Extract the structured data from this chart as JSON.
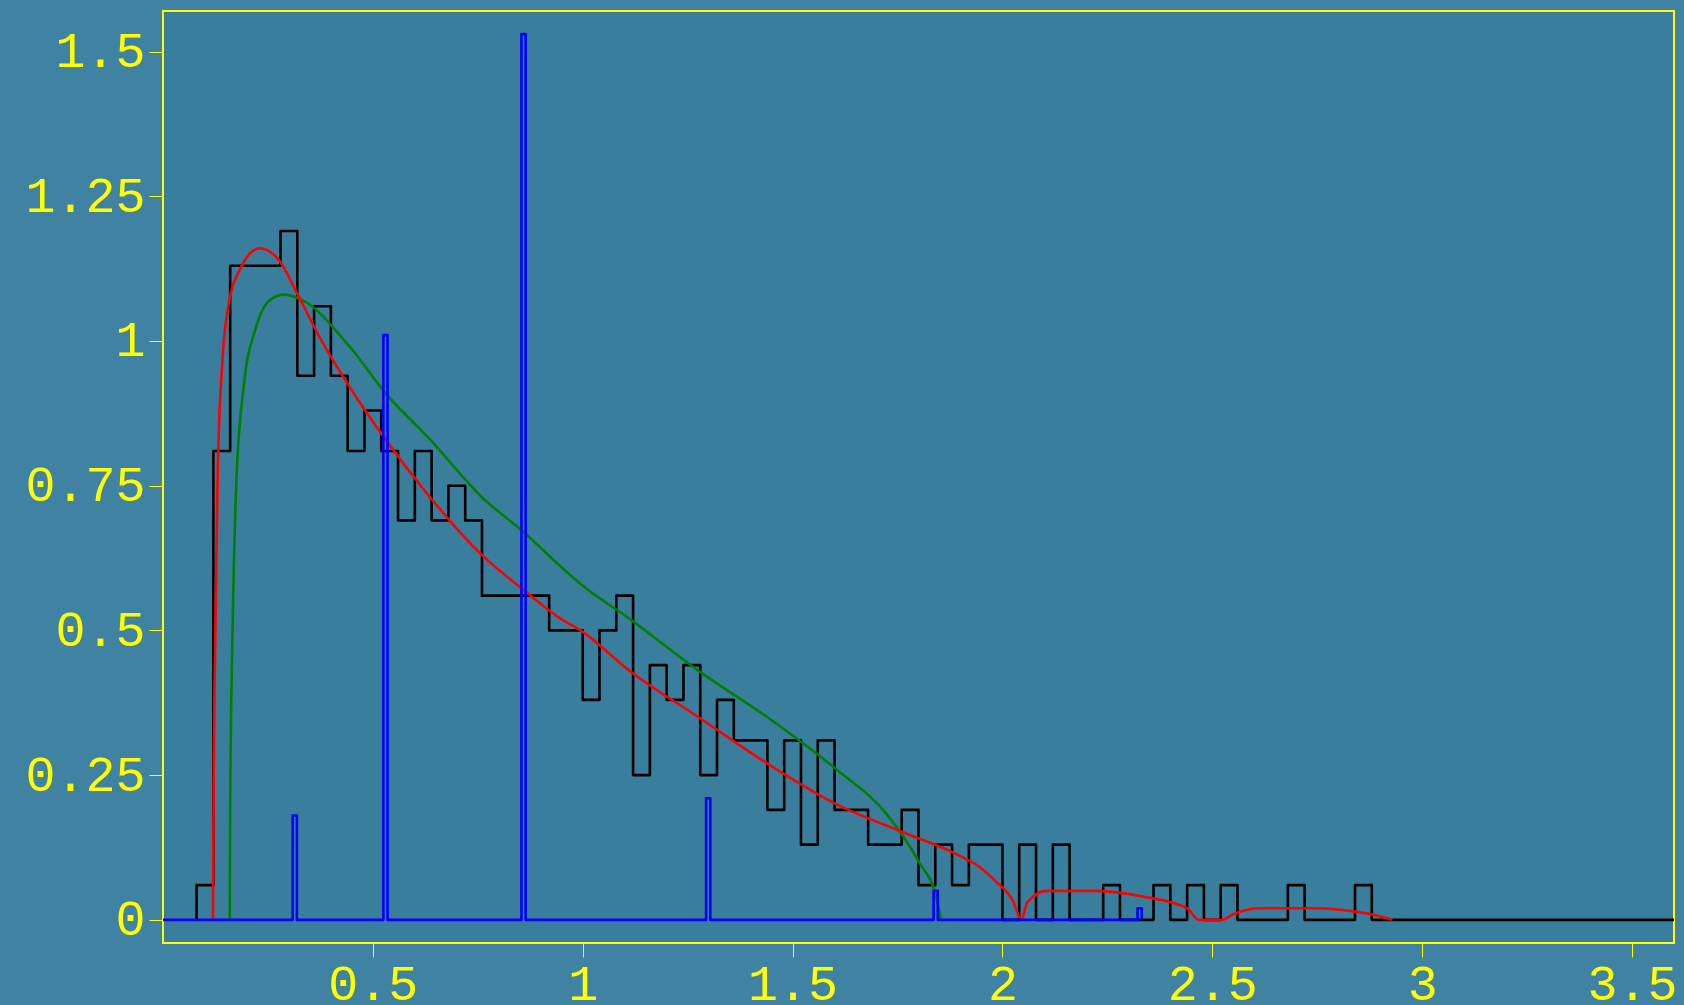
{
  "chart_data": {
    "type": "line",
    "xlim": [
      0,
      3.6
    ],
    "ylim": [
      -0.04,
      1.57
    ],
    "xticks": [
      0.5,
      1,
      1.5,
      2,
      2.5,
      3,
      3.5
    ],
    "yticks": [
      0,
      0.25,
      0.5,
      0.75,
      1,
      1.25,
      1.5
    ],
    "grid": false,
    "series": [
      {
        "type": "histogram",
        "color": "#000000",
        "bins": [
          0.08,
          0.12,
          0.16,
          0.2,
          0.24,
          0.28,
          0.32,
          0.36,
          0.4,
          0.44,
          0.48,
          0.52,
          0.56,
          0.6,
          0.64,
          0.68,
          0.72,
          0.76,
          0.8,
          0.84,
          0.88,
          0.92,
          0.96,
          1.0,
          1.04,
          1.08,
          1.12,
          1.16,
          1.2,
          1.24,
          1.28,
          1.32,
          1.36,
          1.4,
          1.44,
          1.48,
          1.52,
          1.56,
          1.6,
          1.64,
          1.68,
          1.72,
          1.76,
          1.8,
          1.84,
          1.88,
          1.92,
          1.96,
          2.0,
          2.04,
          2.08,
          2.12,
          2.16,
          2.2,
          2.24,
          2.28,
          2.32,
          2.36,
          2.4,
          2.44,
          2.48,
          2.52,
          2.56,
          2.6,
          2.64,
          2.68,
          2.72,
          2.76,
          2.8,
          2.84,
          2.88,
          2.92,
          2.96,
          3.0,
          3.04,
          3.08,
          3.12,
          3.16,
          3.2,
          3.24,
          3.28,
          3.32,
          3.36,
          3.4,
          3.44,
          3.48,
          3.52,
          3.56,
          3.6
        ],
        "values": [
          0.06,
          0.81,
          1.13,
          1.13,
          1.13,
          1.19,
          0.94,
          1.06,
          0.94,
          0.81,
          0.88,
          0.81,
          0.69,
          0.81,
          0.69,
          0.75,
          0.69,
          0.56,
          0.56,
          0.56,
          0.56,
          0.5,
          0.5,
          0.38,
          0.5,
          0.56,
          0.25,
          0.44,
          0.38,
          0.44,
          0.25,
          0.38,
          0.31,
          0.31,
          0.19,
          0.31,
          0.13,
          0.31,
          0.19,
          0.19,
          0.13,
          0.13,
          0.19,
          0.06,
          0.13,
          0.06,
          0.13,
          0.13,
          0,
          0.13,
          0,
          0.13,
          0,
          0,
          0.06,
          0,
          0,
          0.06,
          0,
          0.06,
          0,
          0.06,
          0,
          0,
          0,
          0.06,
          0,
          0,
          0,
          0.06,
          0,
          0,
          0,
          0,
          0,
          0,
          0,
          0,
          0,
          0,
          0,
          0,
          0,
          0,
          0,
          0,
          0,
          0
        ]
      },
      {
        "color": "#008000",
        "x": [
          0.159,
          0.16,
          0.166,
          0.175,
          0.192,
          0.22,
          0.254,
          0.288,
          0.333,
          0.445,
          0.53,
          0.636,
          0.76,
          0.859,
          0.948,
          0.995,
          1.112,
          1.276,
          1.44,
          1.604,
          1.727,
          1.801,
          1.842,
          1.854
        ],
        "values": [
          0,
          0.19,
          0.51,
          0.76,
          0.92,
          1.02,
          1.07,
          1.08,
          1.07,
          0.99,
          0.91,
          0.83,
          0.73,
          0.67,
          0.61,
          0.58,
          0.52,
          0.43,
          0.35,
          0.26,
          0.18,
          0.1,
          0.04,
          0
        ]
      },
      {
        "color": "#ff0000",
        "x": [
          0.119,
          0.121,
          0.125,
          0.13,
          0.141,
          0.158,
          0.181,
          0.23,
          0.276,
          0.321,
          0.378,
          0.445,
          0.53,
          0.625,
          0.76,
          0.859,
          0.948,
          0.995,
          1.112,
          1.276,
          1.44,
          1.604,
          1.768,
          1.9,
          1.948,
          1.979,
          2.027,
          2.045,
          2.059,
          2.106,
          2.217,
          2.337,
          2.44,
          2.467,
          2.523,
          2.551,
          2.614,
          2.733,
          2.876,
          2.929
        ],
        "values": [
          0,
          0.27,
          0.51,
          0.76,
          0.96,
          1.07,
          1.12,
          1.16,
          1.14,
          1.08,
          1.0,
          0.92,
          0.83,
          0.74,
          0.63,
          0.57,
          0.52,
          0.5,
          0.43,
          0.35,
          0.27,
          0.2,
          0.15,
          0.11,
          0.09,
          0.07,
          0.03,
          0,
          0.03,
          0.05,
          0.05,
          0.04,
          0.02,
          0,
          0,
          0.01,
          0.02,
          0.02,
          0.01,
          0
        ]
      },
      {
        "color": "#0000ff",
        "x": [
          0,
          0.309,
          0.309,
          0.319,
          0.319,
          0.525,
          0.525,
          0.535,
          0.535,
          0.854,
          0.854,
          0.864,
          0.864,
          1.294,
          1.294,
          1.304,
          1.304,
          1.836,
          1.836,
          1.846,
          1.846,
          2.322,
          2.322,
          2.332,
          2.332
        ],
        "values": [
          0,
          0,
          0.18,
          0.18,
          0,
          0,
          1.01,
          1.01,
          0,
          0,
          1.53,
          1.53,
          0,
          0,
          0.21,
          0.21,
          0,
          0,
          0.05,
          0.05,
          0,
          0,
          0.02,
          0.02,
          0
        ]
      }
    ]
  }
}
